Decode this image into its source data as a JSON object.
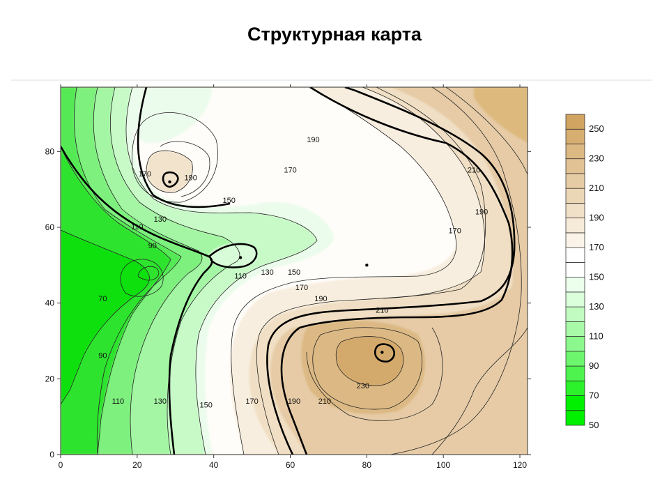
{
  "page": {
    "title": "Структурная карта"
  },
  "chart_data": {
    "type": "contour",
    "title": "Структурная карта",
    "xlabel": "",
    "ylabel": "",
    "xlim": [
      0,
      122
    ],
    "ylim": [
      0,
      97
    ],
    "x_ticks": [
      0,
      20,
      40,
      60,
      80,
      100,
      120
    ],
    "y_ticks": [
      0,
      20,
      40,
      60,
      80
    ],
    "contour_interval": 10,
    "bold_levels": [
      150,
      190,
      210,
      230
    ],
    "contour_labels": [
      {
        "text": "190",
        "x": 66,
        "y": 83
      },
      {
        "text": "170",
        "x": 60,
        "y": 75
      },
      {
        "text": "210",
        "x": 108,
        "y": 75
      },
      {
        "text": "190",
        "x": 110,
        "y": 64
      },
      {
        "text": "170",
        "x": 103,
        "y": 59
      },
      {
        "text": "170",
        "x": 22,
        "y": 74
      },
      {
        "text": "190",
        "x": 34,
        "y": 73
      },
      {
        "text": "150",
        "x": 44,
        "y": 67
      },
      {
        "text": "130",
        "x": 26,
        "y": 62
      },
      {
        "text": "110",
        "x": 20,
        "y": 60
      },
      {
        "text": "90",
        "x": 24,
        "y": 55
      },
      {
        "text": "70",
        "x": 11,
        "y": 41
      },
      {
        "text": "110",
        "x": 47,
        "y": 47
      },
      {
        "text": "130",
        "x": 54,
        "y": 48
      },
      {
        "text": "150",
        "x": 61,
        "y": 48
      },
      {
        "text": "170",
        "x": 63,
        "y": 44
      },
      {
        "text": "190",
        "x": 68,
        "y": 41
      },
      {
        "text": "210",
        "x": 84,
        "y": 38
      },
      {
        "text": "90",
        "x": 11,
        "y": 26
      },
      {
        "text": "110",
        "x": 15,
        "y": 14
      },
      {
        "text": "130",
        "x": 26,
        "y": 14
      },
      {
        "text": "150",
        "x": 38,
        "y": 13
      },
      {
        "text": "170",
        "x": 50,
        "y": 14
      },
      {
        "text": "190",
        "x": 61,
        "y": 14
      },
      {
        "text": "210",
        "x": 69,
        "y": 14
      },
      {
        "text": "230",
        "x": 79,
        "y": 18
      }
    ],
    "peaks": [
      {
        "x": 28.5,
        "y": 72
      },
      {
        "x": 84,
        "y": 27
      },
      {
        "x": 47,
        "y": 52
      },
      {
        "x": 80,
        "y": 50
      }
    ],
    "legend": {
      "position": "right",
      "levels": [
        50,
        60,
        70,
        80,
        90,
        100,
        110,
        120,
        130,
        140,
        150,
        160,
        170,
        180,
        190,
        200,
        210,
        220,
        230,
        240,
        250,
        260
      ],
      "labeled_levels": [
        "250",
        "230",
        "210",
        "190",
        "170",
        "150",
        "130",
        "110",
        "90",
        "70",
        "50"
      ],
      "colors": [
        "#00f000",
        "#2cf22c",
        "#4ef34e",
        "#6ef56e",
        "#8cf78c",
        "#a8f9a8",
        "#c2fbc2",
        "#daffda",
        "#ecffec",
        "#ffffff",
        "#fbf3e8",
        "#f6ead8",
        "#f0e0c7",
        "#ebd6b6",
        "#e6cca5",
        "#e1c294",
        "#dcb883",
        "#d7ae72",
        "#d2a462"
      ]
    }
  }
}
